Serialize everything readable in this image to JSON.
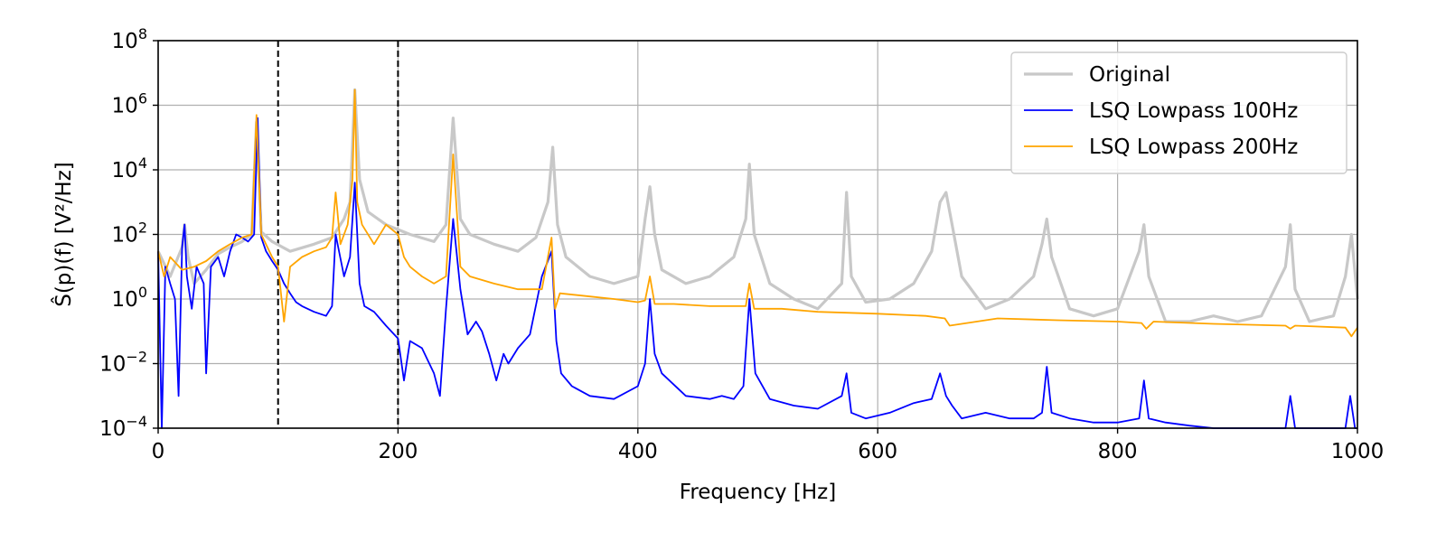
{
  "chart_data": {
    "type": "line",
    "title": "",
    "xlabel": "Frequency [Hz]",
    "ylabel": "Ŝ(p)(f) [V²/Hz]",
    "xlim": [
      0,
      1000
    ],
    "ylim": [
      0.0001,
      100000000
    ],
    "yscale": "log",
    "grid": true,
    "legend_position": "top-right",
    "x_ticks": [
      0,
      200,
      400,
      600,
      800,
      1000
    ],
    "y_tick_labels": [
      {
        "base": "10",
        "exp": "8",
        "value": 100000000
      },
      {
        "base": "10",
        "exp": "6",
        "value": 1000000
      },
      {
        "base": "10",
        "exp": "4",
        "value": 10000
      },
      {
        "base": "10",
        "exp": "2",
        "value": 100
      },
      {
        "base": "10",
        "exp": "0",
        "value": 1
      },
      {
        "base": "10",
        "exp": "−2",
        "value": 0.01
      },
      {
        "base": "10",
        "exp": "−4",
        "value": 0.0001
      }
    ],
    "vertical_lines": [
      100,
      200
    ],
    "series": [
      {
        "name": "Original",
        "color": "#c8c8c8",
        "x": [
          0,
          10,
          20,
          22,
          25,
          30,
          40,
          50,
          60,
          70,
          78,
          82,
          86,
          95,
          110,
          130,
          145,
          155,
          160,
          164,
          168,
          175,
          190,
          210,
          230,
          240,
          246,
          252,
          260,
          280,
          300,
          315,
          325,
          329,
          333,
          340,
          360,
          380,
          400,
          406,
          410,
          414,
          420,
          440,
          460,
          480,
          490,
          493,
          497,
          510,
          530,
          550,
          570,
          574,
          578,
          590,
          610,
          630,
          645,
          652,
          657,
          662,
          670,
          690,
          710,
          730,
          737,
          741,
          745,
          760,
          780,
          800,
          818,
          822,
          826,
          840,
          860,
          880,
          900,
          920,
          940,
          944,
          948,
          960,
          980,
          990,
          995,
          1000
        ],
        "y": [
          30,
          5,
          40,
          200,
          20,
          3,
          8,
          25,
          40,
          60,
          100,
          300000,
          120,
          60,
          30,
          50,
          80,
          300,
          1000,
          3000000,
          5000,
          500,
          200,
          100,
          60,
          200,
          400000,
          300,
          100,
          50,
          30,
          80,
          1000,
          50000,
          200,
          20,
          5,
          3,
          5,
          300,
          3000,
          100,
          8,
          3,
          5,
          20,
          300,
          15000,
          100,
          3,
          1,
          0.5,
          3,
          2000,
          5,
          0.8,
          1,
          3,
          30,
          1000,
          2000,
          200,
          5,
          0.5,
          1,
          5,
          50,
          300,
          20,
          0.5,
          0.3,
          0.5,
          30,
          200,
          5,
          0.2,
          0.2,
          0.3,
          0.2,
          0.3,
          10,
          200,
          2,
          0.2,
          0.3,
          5,
          100,
          1
        ]
      },
      {
        "name": "LSQ Lowpass 100Hz",
        "color": "#0000ff",
        "x": [
          0,
          3,
          6,
          10,
          14,
          17,
          20,
          22,
          24,
          28,
          32,
          38,
          40,
          44,
          50,
          55,
          60,
          65,
          70,
          75,
          80,
          83,
          86,
          90,
          95,
          100,
          105,
          110,
          115,
          120,
          130,
          140,
          145,
          148,
          155,
          160,
          164,
          168,
          172,
          180,
          190,
          200,
          205,
          210,
          220,
          230,
          235,
          240,
          246,
          252,
          258,
          265,
          270,
          276,
          282,
          288,
          292,
          300,
          310,
          320,
          328,
          332,
          336,
          345,
          360,
          380,
          400,
          406,
          410,
          414,
          420,
          440,
          460,
          470,
          480,
          488,
          493,
          498,
          510,
          530,
          550,
          570,
          574,
          578,
          590,
          610,
          630,
          645,
          652,
          657,
          662,
          670,
          690,
          710,
          730,
          737,
          741,
          745,
          760,
          780,
          800,
          818,
          822,
          826,
          840,
          860,
          880,
          900,
          920,
          940,
          944,
          948,
          960,
          980,
          990,
          994,
          998,
          1000
        ],
        "y": [
          30,
          0.0001,
          10,
          3,
          1,
          0.001,
          40,
          200,
          5,
          0.5,
          10,
          3,
          0.005,
          10,
          20,
          5,
          30,
          100,
          80,
          60,
          100,
          400000,
          80,
          30,
          15,
          8,
          3,
          1.5,
          0.8,
          0.6,
          0.4,
          0.3,
          0.6,
          100,
          5,
          20,
          4000,
          3,
          0.6,
          0.4,
          0.15,
          0.06,
          0.003,
          0.05,
          0.03,
          0.005,
          0.001,
          0.5,
          300,
          2,
          0.08,
          0.2,
          0.1,
          0.02,
          0.003,
          0.02,
          0.01,
          0.03,
          0.08,
          5,
          30,
          0.05,
          0.005,
          0.002,
          0.001,
          0.0008,
          0.002,
          0.01,
          1,
          0.02,
          0.005,
          0.001,
          0.0008,
          0.001,
          0.0008,
          0.002,
          1,
          0.005,
          0.0008,
          0.0005,
          0.0004,
          0.001,
          0.005,
          0.0003,
          0.0002,
          0.0003,
          0.0006,
          0.0008,
          0.005,
          0.001,
          0.0005,
          0.0002,
          0.0003,
          0.0002,
          0.0002,
          0.0003,
          0.008,
          0.0003,
          0.0002,
          0.00015,
          0.00015,
          0.0002,
          0.003,
          0.0002,
          0.00015,
          0.00012,
          0.0001,
          0.0001,
          0.0001,
          0.0001,
          0.001,
          0.0001,
          0.0001,
          0.0001,
          0.0001,
          0.001,
          0.0001,
          0.0001
        ]
      },
      {
        "name": "LSQ Lowpass 200Hz",
        "color": "#ffa500",
        "x": [
          0,
          5,
          10,
          20,
          30,
          40,
          50,
          60,
          70,
          78,
          82,
          86,
          95,
          100,
          105,
          110,
          120,
          130,
          140,
          145,
          148,
          152,
          158,
          162,
          164,
          166,
          170,
          180,
          190,
          200,
          205,
          210,
          220,
          230,
          240,
          246,
          252,
          260,
          280,
          300,
          320,
          328,
          331,
          335,
          360,
          380,
          400,
          406,
          410,
          414,
          430,
          460,
          490,
          493,
          497,
          520,
          550,
          600,
          640,
          656,
          660,
          700,
          750,
          800,
          820,
          824,
          830,
          880,
          940,
          944,
          948,
          990,
          995,
          1000
        ],
        "y": [
          30,
          5,
          20,
          8,
          10,
          15,
          30,
          50,
          80,
          100,
          500000,
          100,
          20,
          10,
          0.2,
          10,
          20,
          30,
          40,
          80,
          2000,
          50,
          200,
          5000,
          3000000,
          1000,
          200,
          50,
          200,
          100,
          20,
          10,
          5,
          3,
          5,
          30000,
          10,
          5,
          3,
          2,
          2,
          80,
          0.5,
          1.5,
          1.2,
          1,
          0.8,
          0.9,
          5,
          0.7,
          0.7,
          0.6,
          0.6,
          3,
          0.5,
          0.5,
          0.4,
          0.35,
          0.3,
          0.25,
          0.15,
          0.25,
          0.22,
          0.2,
          0.18,
          0.12,
          0.2,
          0.17,
          0.15,
          0.12,
          0.15,
          0.13,
          0.07,
          0.13
        ]
      }
    ]
  }
}
